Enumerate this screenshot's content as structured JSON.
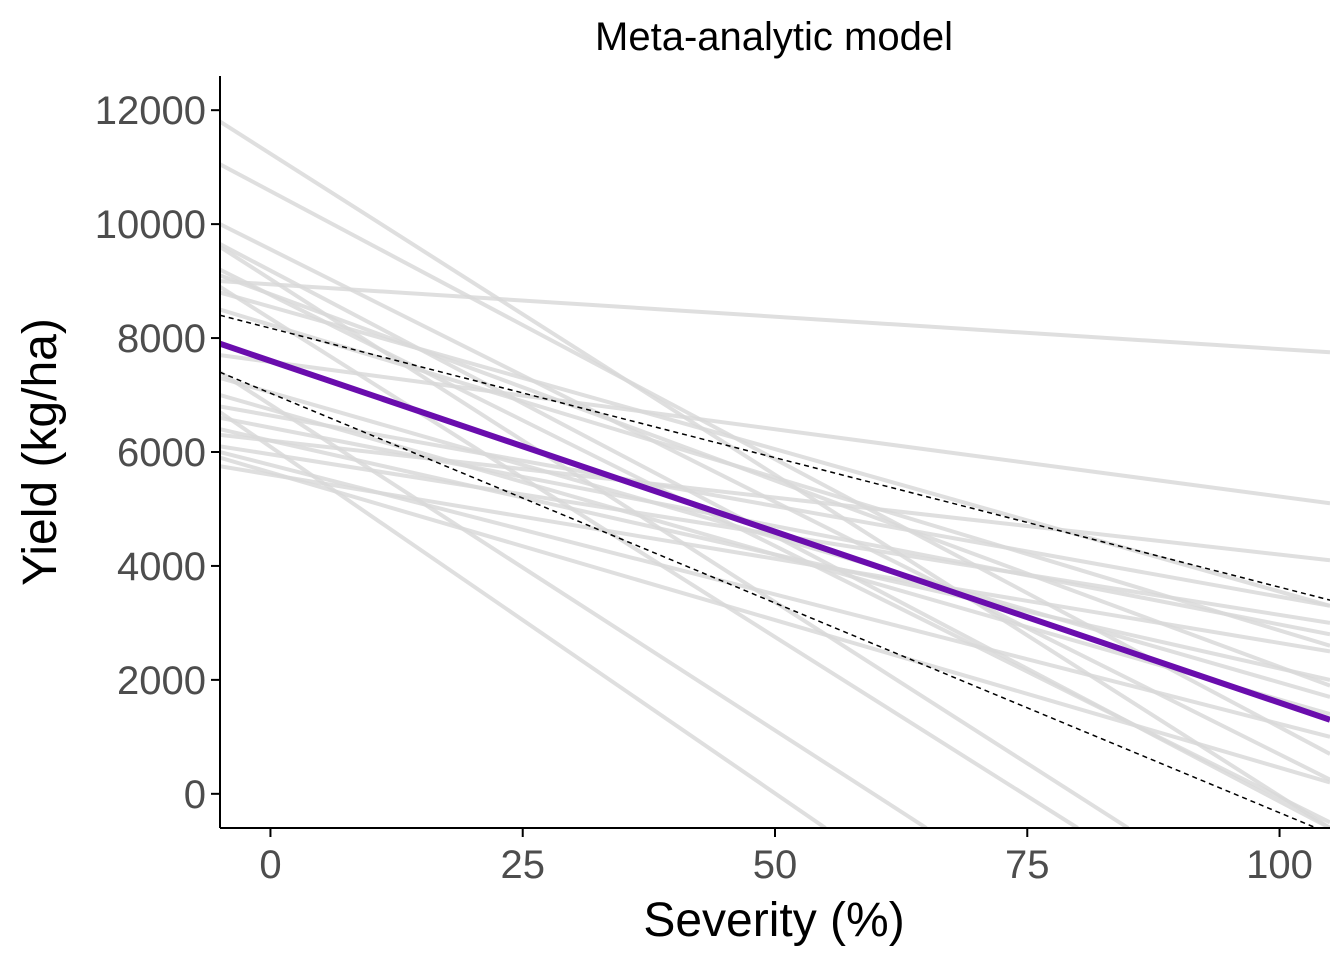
{
  "chart_data": {
    "type": "line",
    "title": "Meta-analytic model",
    "xlabel": "Severity (%)",
    "ylabel": "Yield (kg/ha)",
    "xlim": [
      -5,
      105
    ],
    "ylim": [
      -600,
      12600
    ],
    "x_ticks": [
      0,
      25,
      50,
      75,
      100
    ],
    "x_tick_labels": [
      "0",
      "25",
      "50",
      "75",
      "100"
    ],
    "y_ticks": [
      0,
      2000,
      4000,
      6000,
      8000,
      10000,
      12000
    ],
    "y_tick_labels": [
      "0",
      "2000",
      "4000",
      "6000",
      "8000",
      "10000",
      "12000"
    ],
    "grid": false,
    "legend": "none",
    "colors": {
      "study_lines": "#d9d9d9",
      "mean_line": "#6a0dad",
      "ci_lines": "#000000",
      "axis": "#000000",
      "tick_text": "#4d4d4d"
    },
    "series": [
      {
        "role": "study",
        "x": [
          -5,
          105
        ],
        "y": [
          11800,
          -600
        ]
      },
      {
        "role": "study",
        "x": [
          -5,
          105
        ],
        "y": [
          11050,
          700
        ]
      },
      {
        "role": "study",
        "x": [
          -5,
          105
        ],
        "y": [
          10000,
          250
        ]
      },
      {
        "role": "study",
        "x": [
          -5,
          105
        ],
        "y": [
          9650,
          -600
        ]
      },
      {
        "role": "study",
        "x": [
          -5,
          105
        ],
        "y": [
          9100,
          1900
        ]
      },
      {
        "role": "study",
        "x": [
          -5,
          105
        ],
        "y": [
          9000,
          7750
        ]
      },
      {
        "role": "study",
        "x": [
          -5,
          105
        ],
        "y": [
          9200,
          -500
        ]
      },
      {
        "role": "study",
        "x": [
          -5,
          105
        ],
        "y": [
          8800,
          3300
        ]
      },
      {
        "role": "study",
        "x": [
          -5,
          105
        ],
        "y": [
          8500,
          2600
        ]
      },
      {
        "role": "study",
        "x": [
          -5,
          105
        ],
        "y": [
          7700,
          5100
        ]
      },
      {
        "role": "study",
        "x": [
          -5,
          105
        ],
        "y": [
          7300,
          1700
        ]
      },
      {
        "role": "study",
        "x": [
          -5,
          105
        ],
        "y": [
          7000,
          1400
        ]
      },
      {
        "role": "study",
        "x": [
          -5,
          105
        ],
        "y": [
          6800,
          3300
        ]
      },
      {
        "role": "study",
        "x": [
          -5,
          105
        ],
        "y": [
          6600,
          2800
        ]
      },
      {
        "role": "study",
        "x": [
          -5,
          105
        ],
        "y": [
          6400,
          2000
        ]
      },
      {
        "role": "study",
        "x": [
          -5,
          105
        ],
        "y": [
          6300,
          4100
        ]
      },
      {
        "role": "study",
        "x": [
          -5,
          105
        ],
        "y": [
          6100,
          3000
        ]
      },
      {
        "role": "study",
        "x": [
          -5,
          105
        ],
        "y": [
          6000,
          1000
        ]
      },
      {
        "role": "study",
        "x": [
          -5,
          105
        ],
        "y": [
          5900,
          200
        ]
      },
      {
        "role": "study",
        "x": [
          -5,
          105
        ],
        "y": [
          5750,
          2500
        ]
      },
      {
        "role": "study",
        "x": [
          -5,
          55
        ],
        "y": [
          6700,
          -600
        ]
      },
      {
        "role": "study",
        "x": [
          -5,
          65
        ],
        "y": [
          7400,
          -600
        ]
      },
      {
        "role": "study",
        "x": [
          -5,
          80
        ],
        "y": [
          8900,
          -600
        ]
      },
      {
        "role": "study",
        "x": [
          -5,
          85
        ],
        "y": [
          9600,
          -600
        ]
      },
      {
        "role": "mean",
        "x": [
          -5,
          105
        ],
        "y": [
          7900,
          1300
        ]
      },
      {
        "role": "ci_upper",
        "x": [
          -5,
          105
        ],
        "y": [
          8400,
          3400
        ]
      },
      {
        "role": "ci_lower",
        "x": [
          -5,
          105
        ],
        "y": [
          7400,
          -700
        ]
      }
    ]
  }
}
